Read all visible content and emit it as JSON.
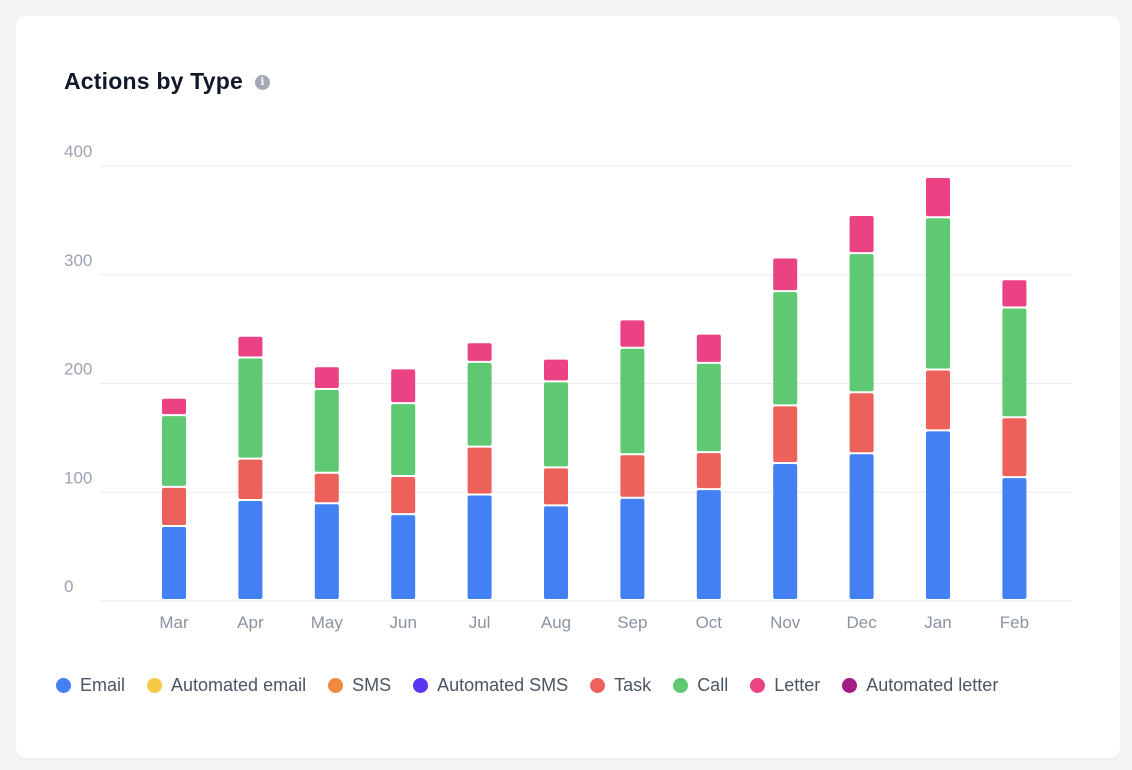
{
  "card": {
    "title": "Actions by Type",
    "info_icon": "info-icon"
  },
  "chart_data": {
    "type": "bar",
    "stacked": true,
    "title": "Actions by Type",
    "xlabel": "",
    "ylabel": "",
    "ylim": [
      0,
      400
    ],
    "yticks": [
      "0",
      "100",
      "200",
      "300",
      "400"
    ],
    "grid": true,
    "legend_position": "bottom",
    "categories": [
      "Mar",
      "Apr",
      "May",
      "Jun",
      "Jul",
      "Aug",
      "Sep",
      "Oct",
      "Nov",
      "Dec",
      "Jan",
      "Feb"
    ],
    "series": [
      {
        "name": "Email",
        "color": "#4280f4",
        "values": [
          68,
          92,
          89,
          79,
          97,
          87,
          94,
          102,
          126,
          135,
          156,
          113
        ]
      },
      {
        "name": "Automated email",
        "color": "#f7c948",
        "values": [
          0,
          0,
          0,
          0,
          0,
          0,
          0,
          0,
          0,
          0,
          0,
          0
        ]
      },
      {
        "name": "SMS",
        "color": "#ef8a3f",
        "values": [
          0,
          0,
          0,
          0,
          0,
          0,
          0,
          0,
          0,
          0,
          0,
          0
        ]
      },
      {
        "name": "Automated SMS",
        "color": "#5b35f0",
        "values": [
          0,
          0,
          0,
          0,
          0,
          0,
          0,
          0,
          0,
          0,
          0,
          0
        ]
      },
      {
        "name": "Task",
        "color": "#ec6159",
        "values": [
          36,
          38,
          28,
          35,
          44,
          35,
          40,
          34,
          53,
          56,
          56,
          55
        ]
      },
      {
        "name": "Call",
        "color": "#5ec872",
        "values": [
          66,
          93,
          77,
          67,
          78,
          79,
          98,
          82,
          105,
          128,
          140,
          101
        ]
      },
      {
        "name": "Letter",
        "color": "#ea4282",
        "values": [
          16,
          20,
          21,
          32,
          18,
          21,
          26,
          27,
          31,
          35,
          37,
          26
        ]
      },
      {
        "name": "Automated letter",
        "color": "#a11e86",
        "values": [
          0,
          0,
          0,
          0,
          0,
          0,
          0,
          0,
          0,
          0,
          0,
          0
        ]
      }
    ]
  }
}
